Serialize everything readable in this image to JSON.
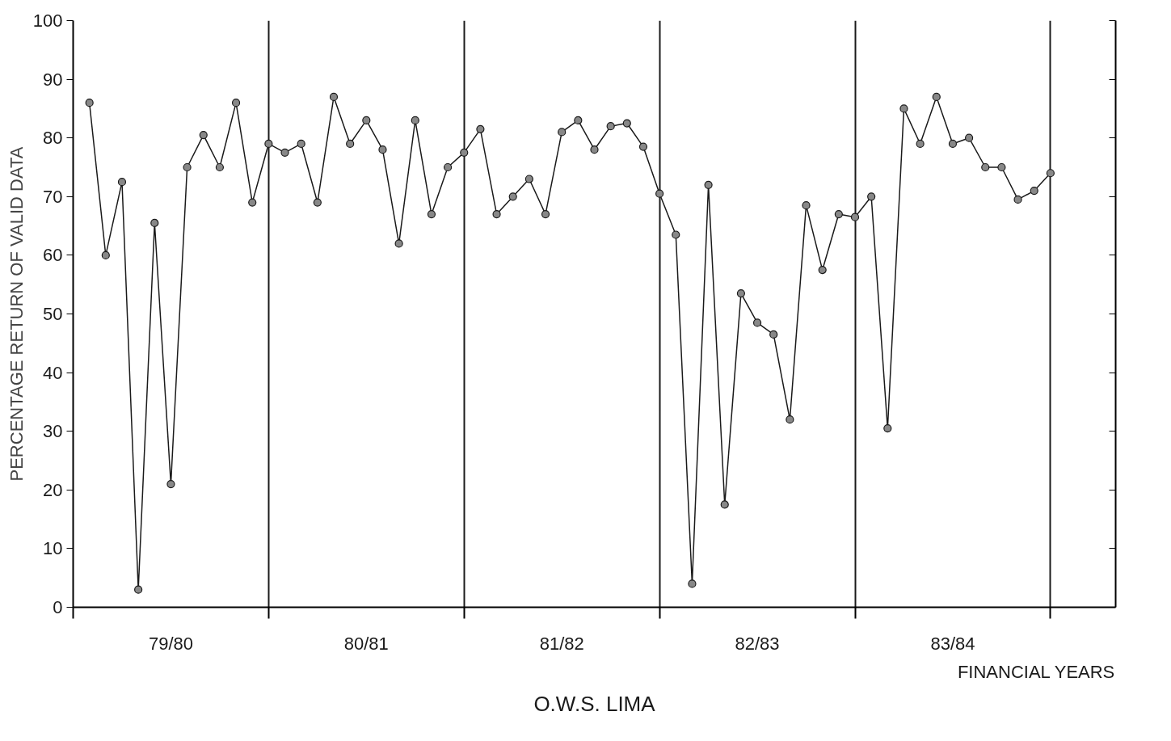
{
  "chart_data": {
    "type": "line",
    "title": "O.W.S. LIMA",
    "xlabel": "FINANCIAL YEARS",
    "ylabel": "PERCENTAGE RETURN OF VALID DATA",
    "categories": [
      null,
      null,
      null,
      null,
      null,
      "79/80",
      null,
      null,
      null,
      null,
      null,
      null,
      null,
      null,
      null,
      null,
      null,
      "80/81",
      null,
      null,
      null,
      null,
      null,
      null,
      null,
      null,
      null,
      null,
      null,
      "81/82",
      null,
      null,
      null,
      null,
      null,
      null,
      null,
      null,
      null,
      null,
      null,
      "82/83",
      null,
      null,
      null,
      null,
      null,
      null,
      null,
      null,
      null,
      null,
      null,
      "83/84",
      null,
      null,
      null,
      null,
      null,
      null
    ],
    "series": [
      {
        "color": "#1a1a1a",
        "values": [
          86,
          60,
          72.5,
          3,
          65.5,
          21,
          75,
          80.5,
          75,
          86,
          69,
          79,
          77.5,
          79,
          69,
          87,
          79,
          83,
          78,
          62,
          83,
          67,
          75,
          77.5,
          81.5,
          67,
          70,
          73,
          67,
          81,
          83,
          78,
          82,
          82.5,
          78.5,
          70.5,
          63.5,
          4,
          72,
          17.5,
          53.5,
          48.5,
          46.5,
          32,
          68.5,
          57.5,
          67,
          66.5,
          70,
          30.5,
          85,
          79,
          87,
          79,
          80,
          75,
          75,
          69.5,
          71,
          74
        ]
      }
    ],
    "ylim": [
      0,
      100
    ],
    "yticks": [
      0,
      10,
      20,
      30,
      40,
      50,
      60,
      70,
      80,
      90,
      100
    ],
    "grid": "x",
    "marker": "circle",
    "line_style": "solid"
  }
}
